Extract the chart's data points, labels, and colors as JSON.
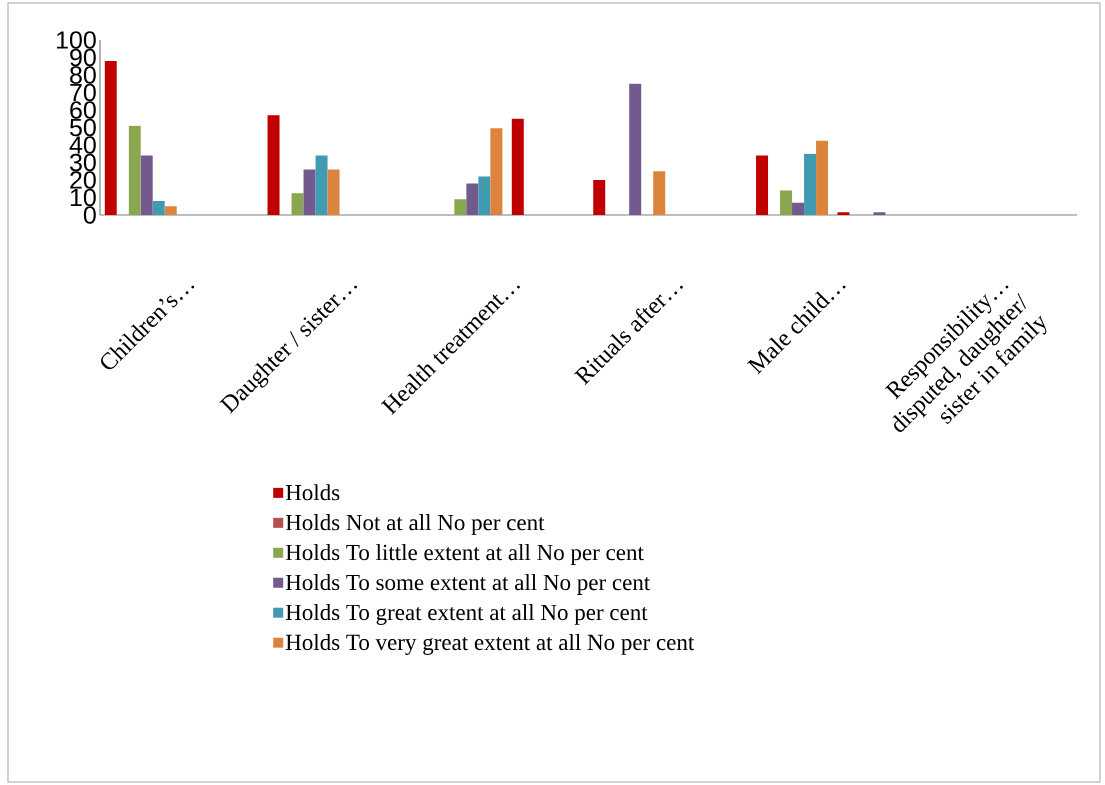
{
  "chart_data": {
    "type": "bar",
    "categories": [
      "Children’s…",
      null,
      "Daughter / sister…",
      null,
      "Health treatment…",
      null,
      "Rituals after…",
      null,
      "Male child…",
      null,
      "Responsibility… disputed, daughter/ sister in family",
      null
    ],
    "series": [
      {
        "name": "Holds",
        "color": "#c00000",
        "values": [
          88,
          null,
          57,
          null,
          null,
          55,
          20,
          null,
          34,
          1.5,
          null,
          null
        ]
      },
      {
        "name": "Holds Not  at all No per cent",
        "color": "#b5504e",
        "values": [
          null,
          null,
          null,
          null,
          null,
          null,
          null,
          null,
          null,
          null,
          null,
          null
        ]
      },
      {
        "name": "Holds To little extent at all No per cent",
        "color": "#8aa64f",
        "values": [
          51,
          null,
          12.5,
          null,
          9,
          null,
          null,
          null,
          14,
          null,
          null,
          null
        ]
      },
      {
        "name": "Holds To some extent at all No per cent",
        "color": "#725a8f",
        "values": [
          34,
          null,
          26,
          null,
          18,
          null,
          75,
          null,
          7,
          1.5,
          null,
          null
        ]
      },
      {
        "name": "Holds To great extent at all No per cent",
        "color": "#419bb0",
        "values": [
          8,
          null,
          34,
          null,
          22,
          null,
          null,
          null,
          35,
          null,
          null,
          null
        ]
      },
      {
        "name": "Holds To very great extent at all No per cent",
        "color": "#dc843e",
        "values": [
          5,
          null,
          26,
          null,
          49.5,
          null,
          25,
          null,
          42.5,
          null,
          null,
          null
        ]
      }
    ],
    "ylim": [
      0,
      100
    ],
    "yticks": [
      0,
      10,
      20,
      30,
      40,
      50,
      60,
      70,
      80,
      90,
      100
    ],
    "legend": "bottom"
  }
}
